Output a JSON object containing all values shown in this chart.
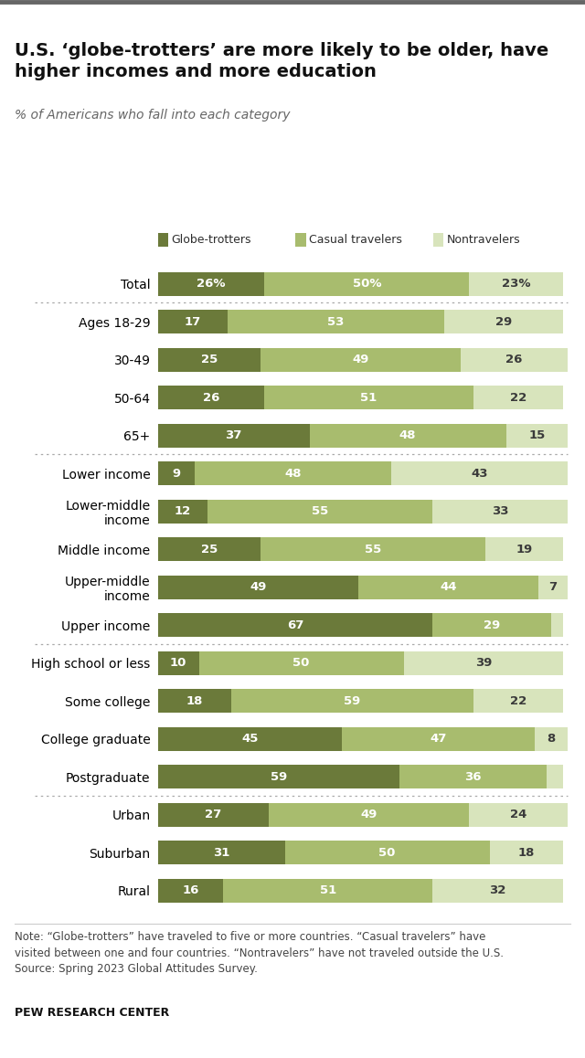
{
  "title": "U.S. ‘globe-trotters’ are more likely to be older, have\nhigher incomes and more education",
  "subtitle": "% of Americans who fall into each category",
  "legend_labels": [
    "Globe-trotters",
    "Casual travelers",
    "Nontravelers"
  ],
  "colors": [
    "#6b7a3a",
    "#a8bc6e",
    "#d8e4bc"
  ],
  "categories": [
    "Total",
    "Ages 18-29",
    "30-49",
    "50-64",
    "65+",
    "Lower income",
    "Lower-middle\nincome",
    "Middle income",
    "Upper-middle\nincome",
    "Upper income",
    "High school or less",
    "Some college",
    "College graduate",
    "Postgraduate",
    "Urban",
    "Suburban",
    "Rural"
  ],
  "globe_trotters": [
    26,
    17,
    25,
    26,
    37,
    9,
    12,
    25,
    49,
    67,
    10,
    18,
    45,
    59,
    27,
    31,
    16
  ],
  "casual_travelers": [
    50,
    53,
    49,
    51,
    48,
    48,
    55,
    55,
    44,
    29,
    50,
    59,
    47,
    36,
    49,
    50,
    51
  ],
  "nontravelers": [
    23,
    29,
    26,
    22,
    15,
    43,
    33,
    19,
    7,
    3,
    39,
    22,
    8,
    4,
    24,
    18,
    32
  ],
  "divider_after_indices": [
    0,
    4,
    9,
    13
  ],
  "note_line1": "Note: “Globe-trotters” have traveled to five or more countries. “Casual travelers” have",
  "note_line2": "visited between one and four countries. “Nontravelers” have not traveled outside the U.S.",
  "note_line3": "Source: Spring 2023 Global Attitudes Survey.",
  "source": "PEW RESEARCH CENTER",
  "bg_color": "#ffffff",
  "bar_height": 0.62,
  "text_color_dark": "#2d2d2d",
  "bar_text_color_white": "#ffffff",
  "nontrav_text_color": "#3a3a3a",
  "title_fontsize": 14,
  "subtitle_fontsize": 10,
  "legend_fontsize": 9,
  "bar_label_fontsize": 9.5,
  "yticklabel_fontsize": 10,
  "note_fontsize": 8.5,
  "source_fontsize": 9,
  "top_bar_color": "#555555"
}
